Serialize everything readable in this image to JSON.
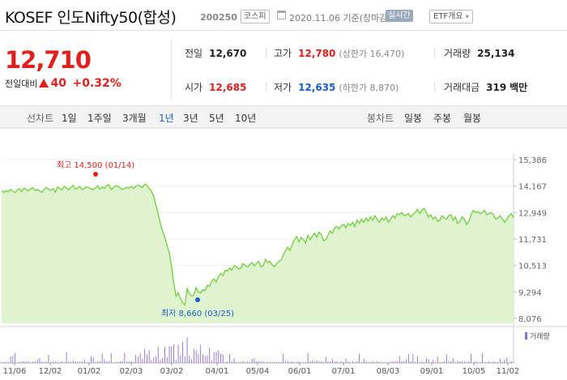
{
  "header": {
    "title": "KOSEF 인도Nifty50(합성)",
    "code": "200250",
    "market": "코스피",
    "date": "2020.11.06 기준(장마감)",
    "realtime_label": "실시간",
    "etf_label": "ETF개요"
  },
  "quote": {
    "price": "12,710",
    "change_label": "전일대비",
    "change": "40",
    "change_pct": "+0.32%",
    "prev_close_label": "전일",
    "prev_close": "12,670",
    "high_label": "고가",
    "high": "12,780",
    "upper_limit": "(상한가 16,470)",
    "volume_label": "거래량",
    "volume": "25,134",
    "open_label": "시가",
    "open": "12,685",
    "low_label": "저가",
    "low": "12,635",
    "lower_limit": "(하한가 8,870)",
    "amount_label": "거래대금",
    "amount": "319",
    "amount_unit": "백만"
  },
  "tabs": {
    "line_label": "선차트",
    "periods": [
      "1일",
      "1주일",
      "3개월",
      "1년",
      "3년",
      "5년",
      "10년"
    ],
    "selected": "1년",
    "candle_label": "봉차트",
    "candle_periods": [
      "일봉",
      "주봉",
      "월봉"
    ]
  },
  "colors": {
    "up": "#e0201c",
    "down": "#1a5bd0",
    "line": "#6fcf3c",
    "fill": "#dff3cf"
  },
  "chart_data": {
    "type": "area",
    "y_ticks": [
      "15,386",
      "14,167",
      "12,949",
      "11,731",
      "10,513",
      "9,294",
      "8,076"
    ],
    "y_tick_values": [
      15386,
      14167,
      12949,
      11731,
      10513,
      9294,
      8076
    ],
    "ylim": [
      8076,
      15386
    ],
    "x_ticks": [
      "11/06",
      "12/02",
      "01/02",
      "02/03",
      "03/02",
      "04/01",
      "05/04",
      "06/01",
      "07/01",
      "08/03",
      "09/01",
      "10/05",
      "11/02"
    ],
    "max_annotation": "최고 14,500 (01/14)",
    "min_annotation": "최저 8,660 (03/25)",
    "volume_label": "거래량",
    "series": [
      {
        "values": [
          13950,
          13880,
          13960,
          13900,
          14010,
          13930,
          13870,
          13990,
          14050,
          13920,
          14080,
          14020,
          13950,
          14060,
          14090,
          13960,
          14010,
          13940,
          13880,
          14020,
          14100,
          14030,
          13970,
          14060,
          13890,
          14120,
          14050,
          14000,
          14150,
          14080,
          13990,
          14110,
          14200,
          14020,
          14080,
          14150,
          14010,
          14060,
          14130,
          14090,
          14050,
          14000,
          14080,
          14190,
          14020,
          14130,
          14060,
          14200,
          14230,
          14010,
          14100,
          14180,
          14160,
          14090,
          14020,
          14060,
          14110,
          14080,
          14150,
          14050,
          14170,
          14220,
          14160,
          14100,
          14260,
          14200,
          14050,
          13950,
          13700,
          13300,
          12900,
          12450,
          12100,
          11800,
          11450,
          11100,
          10500,
          9700,
          9100,
          9250,
          9000,
          8800,
          8700,
          9450,
          9200,
          9100,
          9150,
          9500,
          9300,
          9250,
          9400,
          9350,
          9600,
          9550,
          9800,
          9900,
          9750,
          10000,
          10150,
          10050,
          10300,
          10250,
          10400,
          10300,
          10500,
          10450,
          10350,
          10400,
          10600,
          10500,
          10450,
          10550,
          10650,
          10500,
          10600,
          10700,
          10450,
          10500,
          10800,
          10650,
          10700,
          10550,
          10450,
          10600,
          10700,
          10750,
          11000,
          11200,
          11350,
          11200,
          11500,
          11700,
          11850,
          11600,
          11800,
          11700,
          11550,
          11900,
          11700,
          11850,
          12000,
          11800,
          12050,
          11950,
          11650,
          11700,
          11900,
          12100,
          12000,
          12250,
          12300,
          12200,
          12350,
          12400,
          12250,
          12450,
          12350,
          12500,
          12300,
          12600,
          12450,
          12650,
          12500,
          12700,
          12550,
          12750,
          12600,
          12800,
          12650,
          12500,
          12700,
          12600,
          12750,
          12500,
          12650,
          12800,
          12700,
          12900,
          12850,
          12950,
          12800,
          12850,
          12900,
          12750,
          12850,
          12950,
          13100,
          12900,
          13050,
          13150,
          12950,
          12750,
          12850,
          12650,
          12750,
          12550,
          12600,
          12800,
          12700,
          12650,
          12800,
          12850,
          12600,
          12750,
          12450,
          12550,
          12750,
          12650,
          12400,
          12550,
          12850,
          13050,
          12950,
          13000,
          12900,
          12950,
          13050,
          12850,
          12900,
          12950,
          12850,
          12650,
          12700,
          12800,
          12650,
          12500,
          12650,
          12800,
          12900,
          12710
        ]
      }
    ]
  }
}
